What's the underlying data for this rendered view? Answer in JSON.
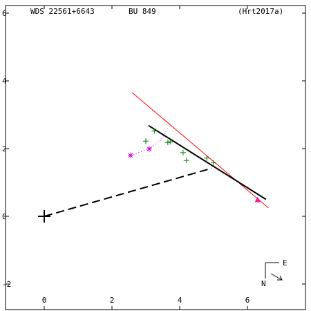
{
  "header": {
    "wds_id": "WDS 22561+6643",
    "discoverer": "BU  849",
    "reference": "(Hrt2017a)"
  },
  "compass": {
    "east_label": "E",
    "north_label": "N"
  },
  "colors": {
    "frame": "#000000",
    "orbit_line": "#000000",
    "fit_line": "#ff0000",
    "star_markers": "#008000",
    "asterisk_markers": "#cc00cc",
    "dotted_trail": "#cc00cc",
    "current_position": "#ff1493",
    "background": "#ffffff"
  },
  "chart_data": {
    "type": "scatter",
    "xlim": [
      -1.1,
      7.8
    ],
    "ylim": [
      -2.7,
      6.3
    ],
    "x_ticks": [
      0,
      2,
      4,
      6
    ],
    "y_ticks": [
      -2,
      0,
      2,
      4,
      6
    ],
    "x_tick_labels": [
      "0",
      "2",
      "4",
      "6"
    ],
    "y_tick_labels": [
      "-2",
      "0",
      "2",
      "4",
      "6"
    ],
    "grid": false,
    "primary_star": {
      "x": 0.0,
      "y": 0.0
    },
    "separation_vector": {
      "from": [
        0.0,
        0.0
      ],
      "to": [
        4.95,
        1.42
      ],
      "style": "dashed"
    },
    "orbit_segment": {
      "from": [
        3.08,
        2.68
      ],
      "to": [
        6.55,
        0.5
      ]
    },
    "fit_line": {
      "from": [
        2.6,
        3.65
      ],
      "to": [
        6.62,
        0.25
      ]
    },
    "plus_points": [
      {
        "x": 3.0,
        "y": 2.22
      },
      {
        "x": 3.25,
        "y": 2.52
      },
      {
        "x": 3.65,
        "y": 2.18
      },
      {
        "x": 3.72,
        "y": 2.2
      },
      {
        "x": 4.1,
        "y": 1.88
      },
      {
        "x": 4.2,
        "y": 1.65
      },
      {
        "x": 4.8,
        "y": 1.72
      },
      {
        "x": 5.0,
        "y": 1.58
      }
    ],
    "asterisk_points": [
      {
        "x": 2.55,
        "y": 1.8
      },
      {
        "x": 3.1,
        "y": 1.99
      }
    ],
    "dotted_trail": [
      [
        2.55,
        1.8
      ],
      [
        3.1,
        1.99
      ],
      [
        3.45,
        2.25
      ],
      [
        3.65,
        2.62
      ]
    ],
    "current_position": {
      "x": 6.3,
      "y": 0.5
    }
  }
}
